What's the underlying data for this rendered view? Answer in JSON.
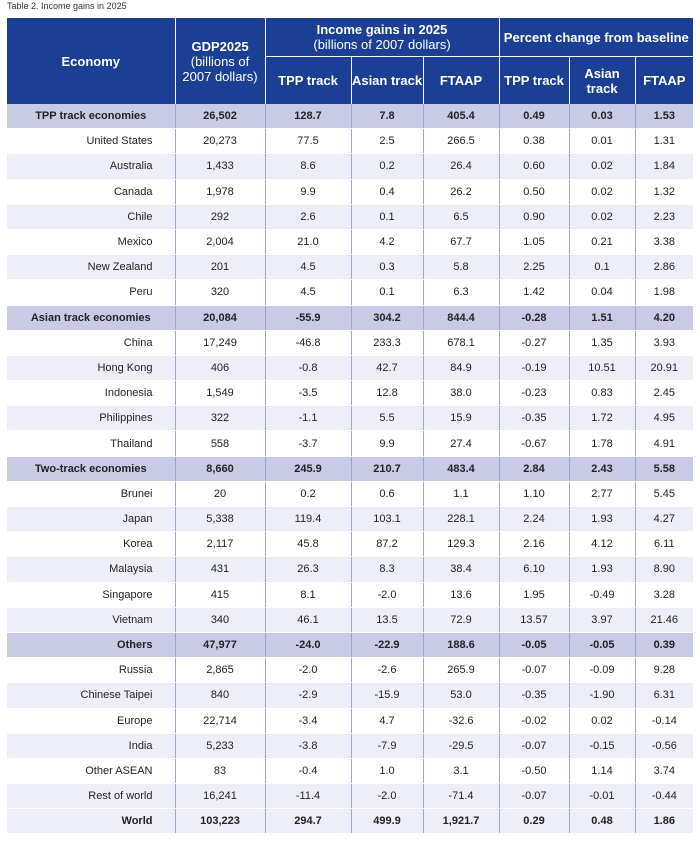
{
  "caption": "Table 2. Income gains in 2025",
  "header": {
    "economy": "Economy",
    "gdp_title": "GDP2025",
    "gdp_sub": "(billions of 2007 dollars)",
    "income_title": "Income gains in 2025",
    "income_sub": "(billions of 2007 dollars)",
    "percent_title": "Percent change from baseline",
    "tpp": "TPP track",
    "asian": "Asian track",
    "ftaap": "FTAAP"
  },
  "rows": [
    {
      "type": "grp",
      "name": "TPP track economies",
      "gdp": "26,502",
      "i_tpp": "128.7",
      "i_asian": "7.8",
      "i_ftaap": "405.4",
      "p_tpp": "0.49",
      "p_asian": "0.03",
      "p_ftaap": "1.53"
    },
    {
      "type": "row",
      "name": "United States",
      "gdp": "20,273",
      "i_tpp": "77.5",
      "i_asian": "2.5",
      "i_ftaap": "266.5",
      "p_tpp": "0.38",
      "p_asian": "0.01",
      "p_ftaap": "1.31"
    },
    {
      "type": "row",
      "name": "Australia",
      "gdp": "1,433",
      "i_tpp": "8.6",
      "i_asian": "0.2",
      "i_ftaap": "26.4",
      "p_tpp": "0.60",
      "p_asian": "0.02",
      "p_ftaap": "1.84"
    },
    {
      "type": "row",
      "name": "Canada",
      "gdp": "1,978",
      "i_tpp": "9.9",
      "i_asian": "0.4",
      "i_ftaap": "26.2",
      "p_tpp": "0.50",
      "p_asian": "0.02",
      "p_ftaap": "1.32"
    },
    {
      "type": "row",
      "name": "Chile",
      "gdp": "292",
      "i_tpp": "2.6",
      "i_asian": "0.1",
      "i_ftaap": "6.5",
      "p_tpp": "0.90",
      "p_asian": "0.02",
      "p_ftaap": "2.23"
    },
    {
      "type": "row",
      "name": "Mexico",
      "gdp": "2,004",
      "i_tpp": "21.0",
      "i_asian": "4.2",
      "i_ftaap": "67.7",
      "p_tpp": "1.05",
      "p_asian": "0.21",
      "p_ftaap": "3.38"
    },
    {
      "type": "row",
      "name": "New Zealand",
      "gdp": "201",
      "i_tpp": "4.5",
      "i_asian": "0.3",
      "i_ftaap": "5.8",
      "p_tpp": "2.25",
      "p_asian": "0.1",
      "p_ftaap": "2.86"
    },
    {
      "type": "row",
      "name": "Peru",
      "gdp": "320",
      "i_tpp": "4.5",
      "i_asian": "0.1",
      "i_ftaap": "6.3",
      "p_tpp": "1.42",
      "p_asian": "0.04",
      "p_ftaap": "1.98"
    },
    {
      "type": "grp",
      "name": "Asian track economies",
      "gdp": "20,084",
      "i_tpp": "-55.9",
      "i_asian": "304.2",
      "i_ftaap": "844.4",
      "p_tpp": "-0.28",
      "p_asian": "1.51",
      "p_ftaap": "4.20"
    },
    {
      "type": "row",
      "name": "China",
      "gdp": "17,249",
      "i_tpp": "-46.8",
      "i_asian": "233.3",
      "i_ftaap": "678.1",
      "p_tpp": "-0.27",
      "p_asian": "1.35",
      "p_ftaap": "3.93"
    },
    {
      "type": "row",
      "name": "Hong Kong",
      "gdp": "406",
      "i_tpp": "-0.8",
      "i_asian": "42.7",
      "i_ftaap": "84.9",
      "p_tpp": "-0.19",
      "p_asian": "10.51",
      "p_ftaap": "20.91"
    },
    {
      "type": "row",
      "name": "Indonesia",
      "gdp": "1,549",
      "i_tpp": "-3.5",
      "i_asian": "12.8",
      "i_ftaap": "38.0",
      "p_tpp": "-0.23",
      "p_asian": "0.83",
      "p_ftaap": "2.45"
    },
    {
      "type": "row",
      "name": "Philippines",
      "gdp": "322",
      "i_tpp": "-1.1",
      "i_asian": "5.5",
      "i_ftaap": "15.9",
      "p_tpp": "-0.35",
      "p_asian": "1.72",
      "p_ftaap": "4.95"
    },
    {
      "type": "row",
      "name": "Thailand",
      "gdp": "558",
      "i_tpp": "-3.7",
      "i_asian": "9.9",
      "i_ftaap": "27.4",
      "p_tpp": "-0.67",
      "p_asian": "1.78",
      "p_ftaap": "4.91"
    },
    {
      "type": "grp",
      "name": "Two-track economies",
      "gdp": "8,660",
      "i_tpp": "245.9",
      "i_asian": "210.7",
      "i_ftaap": "483.4",
      "p_tpp": "2.84",
      "p_asian": "2.43",
      "p_ftaap": "5.58"
    },
    {
      "type": "row",
      "name": "Brunei",
      "gdp": "20",
      "i_tpp": "0.2",
      "i_asian": "0.6",
      "i_ftaap": "1.1",
      "p_tpp": "1.10",
      "p_asian": "2.77",
      "p_ftaap": "5.45"
    },
    {
      "type": "row",
      "name": "Japan",
      "gdp": "5,338",
      "i_tpp": "119.4",
      "i_asian": "103.1",
      "i_ftaap": "228.1",
      "p_tpp": "2.24",
      "p_asian": "1.93",
      "p_ftaap": "4.27"
    },
    {
      "type": "row",
      "name": "Korea",
      "gdp": "2,117",
      "i_tpp": "45.8",
      "i_asian": "87.2",
      "i_ftaap": "129.3",
      "p_tpp": "2.16",
      "p_asian": "4.12",
      "p_ftaap": "6.11"
    },
    {
      "type": "row",
      "name": "Malaysia",
      "gdp": "431",
      "i_tpp": "26.3",
      "i_asian": "8.3",
      "i_ftaap": "38.4",
      "p_tpp": "6.10",
      "p_asian": "1.93",
      "p_ftaap": "8.90"
    },
    {
      "type": "row",
      "name": "Singapore",
      "gdp": "415",
      "i_tpp": "8.1",
      "i_asian": "-2.0",
      "i_ftaap": "13.6",
      "p_tpp": "1.95",
      "p_asian": "-0.49",
      "p_ftaap": "3.28"
    },
    {
      "type": "row",
      "name": "Vietnam",
      "gdp": "340",
      "i_tpp": "46.1",
      "i_asian": "13.5",
      "i_ftaap": "72.9",
      "p_tpp": "13.57",
      "p_asian": "3.97",
      "p_ftaap": "21.46"
    },
    {
      "type": "grp",
      "name": "Others",
      "gdp": "47,977",
      "i_tpp": "-24.0",
      "i_asian": "-22.9",
      "i_ftaap": "188.6",
      "p_tpp": "-0.05",
      "p_asian": "-0.05",
      "p_ftaap": "0.39",
      "align": "right"
    },
    {
      "type": "row",
      "name": "Russia",
      "gdp": "2,865",
      "i_tpp": "-2.0",
      "i_asian": "-2.6",
      "i_ftaap": "265.9",
      "p_tpp": "-0.07",
      "p_asian": "-0.09",
      "p_ftaap": "9.28"
    },
    {
      "type": "row",
      "name": "Chinese Taipei",
      "gdp": "840",
      "i_tpp": "-2.9",
      "i_asian": "-15.9",
      "i_ftaap": "53.0",
      "p_tpp": "-0.35",
      "p_asian": "-1.90",
      "p_ftaap": "6.31"
    },
    {
      "type": "row",
      "name": "Europe",
      "gdp": "22,714",
      "i_tpp": "-3.4",
      "i_asian": "4.7",
      "i_ftaap": "-32.6",
      "p_tpp": "-0.02",
      "p_asian": "0.02",
      "p_ftaap": "-0.14"
    },
    {
      "type": "row",
      "name": "India",
      "gdp": "5,233",
      "i_tpp": "-3.8",
      "i_asian": "-7.9",
      "i_ftaap": "-29.5",
      "p_tpp": "-0.07",
      "p_asian": "-0.15",
      "p_ftaap": "-0.56"
    },
    {
      "type": "row",
      "name": "Other ASEAN",
      "gdp": "83",
      "i_tpp": "-0.4",
      "i_asian": "1.0",
      "i_ftaap": "3.1",
      "p_tpp": "-0.50",
      "p_asian": "1.14",
      "p_ftaap": "3.74"
    },
    {
      "type": "row",
      "name": "Rest of world",
      "gdp": "16,241",
      "i_tpp": "-11.4",
      "i_asian": "-2.0",
      "i_ftaap": "-71.4",
      "p_tpp": "-0.07",
      "p_asian": "-0.01",
      "p_ftaap": "-0.44"
    },
    {
      "type": "tot",
      "name": "World",
      "gdp": "103,223",
      "i_tpp": "294.7",
      "i_asian": "499.9",
      "i_ftaap": "1,921.7",
      "p_tpp": "0.29",
      "p_asian": "0.48",
      "p_ftaap": "1.86"
    }
  ]
}
